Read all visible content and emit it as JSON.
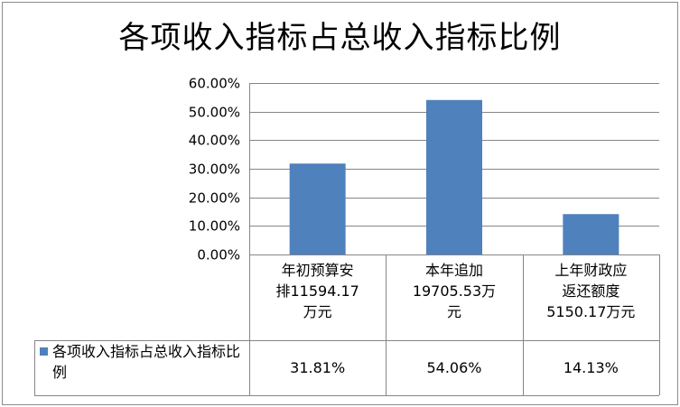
{
  "chart_data": {
    "type": "bar",
    "title": "各项收入指标占总收入指标比例",
    "categories": [
      "年初预算安排11594.17万元",
      "本年追加19705.53万元",
      "上年财政应返还额度5150.17万元"
    ],
    "category_lines": [
      [
        "年初预算安",
        "排11594.17",
        "万元"
      ],
      [
        "本年追加",
        "19705.53万",
        "元"
      ],
      [
        "上年财政应",
        "返还额度",
        "5150.17万元"
      ]
    ],
    "series": [
      {
        "name": "各项收入指标占总收入指标比例",
        "values": [
          31.81,
          54.06,
          14.13
        ],
        "labels": [
          "31.81%",
          "54.06%",
          "14.13%"
        ]
      }
    ],
    "ylim": [
      0,
      60
    ],
    "yticks": [
      "0.00%",
      "10.00%",
      "20.00%",
      "30.00%",
      "40.00%",
      "50.00%",
      "60.00%"
    ],
    "grid": true,
    "data_table": true,
    "colors": {
      "bar": "#4f81bd",
      "grid": "#868686",
      "axis": "#868686"
    }
  }
}
